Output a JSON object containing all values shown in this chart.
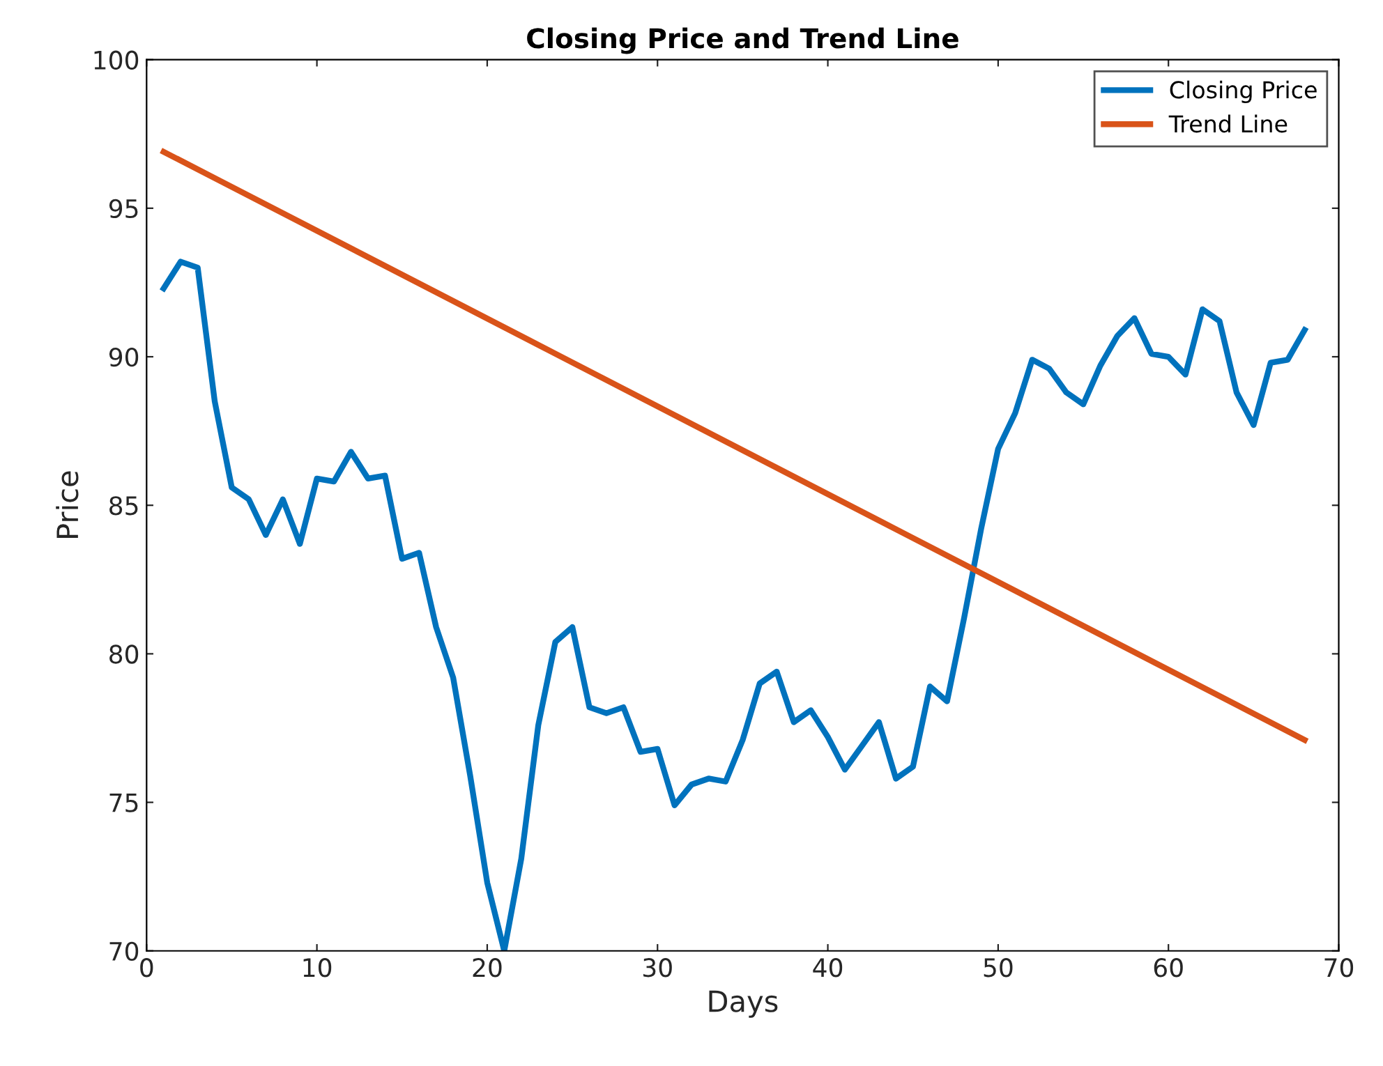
{
  "chart_data": {
    "type": "line",
    "title": "Closing Price and Trend Line",
    "xlabel": "Days",
    "ylabel": "Price",
    "xlim": [
      0,
      70
    ],
    "xticks": [
      0,
      10,
      20,
      30,
      40,
      50,
      60,
      70
    ],
    "ylim": [
      70,
      100
    ],
    "yticks": [
      70,
      75,
      80,
      85,
      90,
      95,
      100
    ],
    "grid": false,
    "legend": "top right",
    "marker": "none",
    "line_style": "solid",
    "series": [
      {
        "name": "Closing Price",
        "color": "#0072bd",
        "x": [
          1,
          2,
          3,
          4,
          5,
          6,
          7,
          8,
          9,
          10,
          11,
          12,
          13,
          14,
          15,
          16,
          17,
          18,
          19,
          20,
          21,
          22,
          23,
          24,
          25,
          26,
          27,
          28,
          29,
          30,
          31,
          32,
          33,
          34,
          35,
          36,
          37,
          38,
          39,
          40,
          41,
          42,
          43,
          44,
          45,
          46,
          47,
          48,
          49,
          50,
          51,
          52,
          53,
          54,
          55,
          56,
          57,
          58,
          59,
          60,
          61,
          62,
          63,
          64,
          65,
          66,
          67,
          68
        ],
        "values": [
          92.3,
          93.2,
          93.0,
          88.5,
          85.6,
          85.2,
          84.0,
          85.2,
          83.7,
          85.9,
          85.8,
          86.8,
          85.9,
          86.0,
          83.2,
          83.4,
          80.9,
          79.2,
          75.9,
          72.3,
          70.0,
          73.1,
          77.6,
          80.4,
          80.9,
          78.2,
          78.0,
          78.2,
          76.7,
          76.8,
          74.9,
          75.6,
          75.8,
          75.7,
          77.1,
          79.0,
          79.4,
          77.7,
          78.1,
          77.2,
          76.1,
          76.9,
          77.7,
          75.8,
          76.2,
          78.9,
          78.4,
          81.2,
          84.2,
          86.9,
          88.1,
          89.9,
          89.6,
          88.8,
          88.4,
          89.7,
          90.7,
          91.3,
          90.1,
          90.0,
          89.4,
          91.6,
          91.2,
          88.8,
          87.7,
          89.8,
          89.9,
          90.9
        ]
      },
      {
        "name": "Trend Line",
        "color": "#d95319",
        "x": [
          1,
          68
        ],
        "values": [
          96.9,
          77.1
        ]
      }
    ]
  }
}
